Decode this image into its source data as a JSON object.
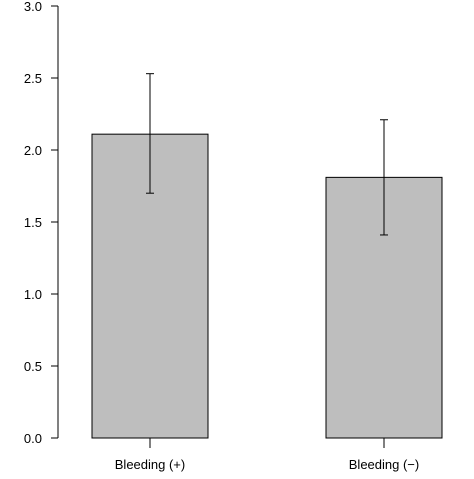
{
  "chart_data": {
    "type": "bar",
    "categories": [
      "Bleeding (+)",
      "Bleeding (−)"
    ],
    "values": [
      2.11,
      1.81
    ],
    "error_bars": [
      {
        "low": 1.7,
        "high": 2.53
      },
      {
        "low": 1.41,
        "high": 2.21
      }
    ],
    "title": "",
    "xlabel": "",
    "ylabel": "",
    "ylim": [
      0,
      3.0
    ],
    "yticks": [
      "0.0",
      "0.5",
      "1.0",
      "1.5",
      "2.0",
      "2.5",
      "3.0"
    ],
    "grid": false,
    "legend": "none",
    "bar_color": "#bebebe",
    "edge_color": "#000000"
  }
}
